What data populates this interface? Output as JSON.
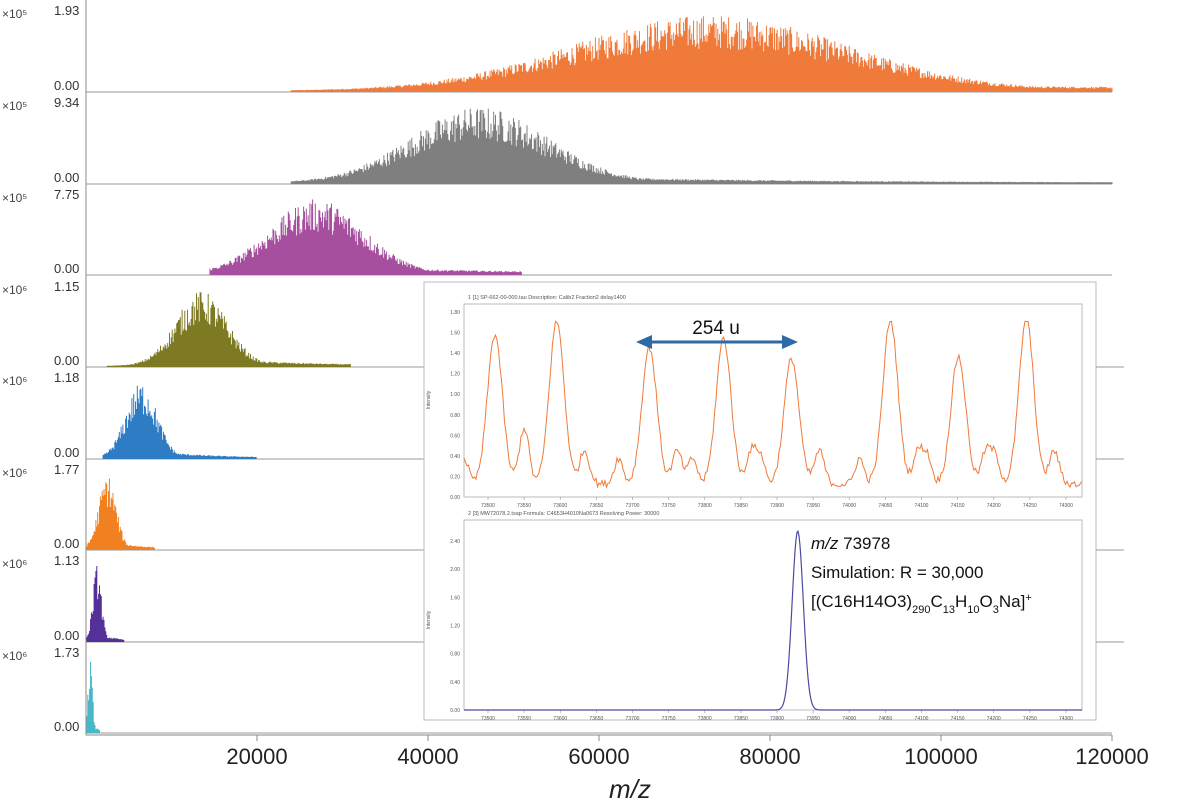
{
  "chart_data": {
    "type": "line",
    "xlabel": "m/z",
    "xlim": [
      0,
      120000
    ],
    "x_ticks": [
      "20000",
      "40000",
      "60000",
      "80000",
      "100000",
      "120000"
    ],
    "panels": [
      {
        "color": "#f07a3a",
        "exponent_label": "×10⁵",
        "ymax_label": "1.93",
        "ymin_label": "0.00",
        "x_range": [
          24000,
          120000
        ],
        "peak_x": 73000,
        "peak_width": 16000
      },
      {
        "color": "#7f7f7f",
        "exponent_label": "×10⁵",
        "ymax_label": "9.34",
        "ymin_label": "0.00",
        "x_range": [
          24000,
          120000
        ],
        "peak_x": 46000,
        "peak_width": 8000
      },
      {
        "color": "#a64f9f",
        "exponent_label": "×10⁵",
        "ymax_label": "7.75",
        "ymin_label": "0.00",
        "x_range": [
          14500,
          51000
        ],
        "peak_x": 27000,
        "peak_width": 5500
      },
      {
        "color": "#7d7a23",
        "exponent_label": "×10⁶",
        "ymax_label": "1.15",
        "ymin_label": "0.00",
        "x_range": [
          2500,
          31000
        ],
        "peak_x": 13500,
        "peak_width": 3000
      },
      {
        "color": "#2e7cc4",
        "exponent_label": "×10⁶",
        "ymax_label": "1.18",
        "ymin_label": "0.00",
        "x_range": [
          2000,
          20000
        ],
        "peak_x": 6500,
        "peak_width": 1800
      },
      {
        "color": "#f08020",
        "exponent_label": "×10⁶",
        "ymax_label": "1.77",
        "ymin_label": "0.00",
        "x_range": [
          100,
          8000
        ],
        "peak_x": 2500,
        "peak_width": 1000
      },
      {
        "color": "#55309a",
        "exponent_label": "×10⁶",
        "ymax_label": "1.13",
        "ymin_label": "0.00",
        "x_range": [
          100,
          4500
        ],
        "peak_x": 1300,
        "peak_width": 500
      },
      {
        "color": "#48b8c8",
        "exponent_label": "×10⁶",
        "ymax_label": "1.73",
        "ymin_label": "0.00",
        "x_range": [
          100,
          1600
        ],
        "peak_x": 500,
        "peak_width": 250
      }
    ],
    "inset_top": {
      "color": "#f07a3a",
      "header": "1 [1] SP-662-00-000.tau  Description: Calib2 Fraction2 delay1400",
      "ylabel": "Intensity",
      "y_ticks": [
        "0.00",
        "0.20",
        "0.40",
        "0.60",
        "0.80",
        "1.00",
        "1.20",
        "1.40",
        "1.60",
        "1.80"
      ],
      "x_ticks": [
        "73500",
        "73550",
        "73600",
        "73650",
        "73700",
        "73750",
        "73800",
        "73850",
        "73900",
        "73950",
        "74000",
        "74050",
        "74100",
        "74150",
        "74200",
        "74250",
        "74300"
      ],
      "peaks_frac": [
        0.05,
        0.15,
        0.3,
        0.42,
        0.53,
        0.69,
        0.8,
        0.91
      ],
      "peak_heights": [
        0.81,
        0.88,
        0.74,
        0.79,
        0.68,
        0.89,
        0.69,
        0.89
      ],
      "annotation": "254 u",
      "arrow_color": "#2e6aa6"
    },
    "inset_bottom": {
      "color": "#4a4aa0",
      "header": "2 [3] MW72078.2.tsap  Formula: C4653H4010Na0673  Resolving Power: 30000",
      "ylabel": "Intensity",
      "y_ticks": [
        "0.00",
        "0.40",
        "0.80",
        "1.20",
        "1.60",
        "2.00",
        "2.40"
      ],
      "x_ticks": [
        "73500",
        "73550",
        "73600",
        "73650",
        "73700",
        "73750",
        "73800",
        "73850",
        "73900",
        "73950",
        "74000",
        "74050",
        "74100",
        "74150",
        "74200",
        "74250",
        "74300"
      ],
      "peak_frac": 0.54,
      "label_mz_prefix": "m/z",
      "label_mz_value": "73978",
      "label_sim": "Simulation: R = 30,000",
      "label_formula_parts": [
        "[(C16H14O3)",
        "290",
        "C",
        "13",
        "H",
        "10",
        "O",
        "3",
        "Na]",
        "+"
      ]
    }
  }
}
